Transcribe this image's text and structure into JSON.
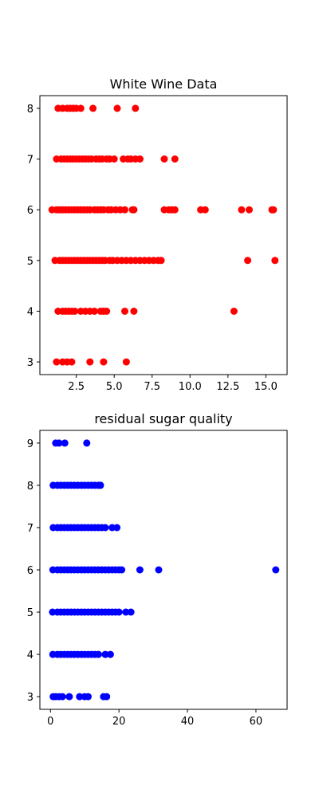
{
  "chart_data": [
    {
      "type": "scatter",
      "title": "White Wine Data",
      "xlabel": "",
      "ylabel": "",
      "xlim": [
        0.1,
        16.4
      ],
      "ylim": [
        2.75,
        8.25
      ],
      "xticks": [
        2.5,
        5.0,
        7.5,
        10.0,
        12.5,
        15.0
      ],
      "xtick_labels": [
        "2.5",
        "5.0",
        "7.5",
        "10.0",
        "12.5",
        "15.0"
      ],
      "yticks": [
        3,
        4,
        5,
        6,
        7,
        8
      ],
      "ytick_labels": [
        "3",
        "4",
        "5",
        "6",
        "7",
        "8"
      ],
      "color": "#ff0000",
      "series": [
        {
          "name": "points",
          "points": [
            [
              1.3,
              8
            ],
            [
              1.6,
              8
            ],
            [
              1.9,
              8
            ],
            [
              2.1,
              8
            ],
            [
              2.3,
              8
            ],
            [
              2.5,
              8
            ],
            [
              2.8,
              8
            ],
            [
              3.6,
              8
            ],
            [
              5.2,
              8
            ],
            [
              6.4,
              8
            ],
            [
              1.2,
              7
            ],
            [
              1.5,
              7
            ],
            [
              1.7,
              7
            ],
            [
              1.9,
              7
            ],
            [
              2.1,
              7
            ],
            [
              2.3,
              7
            ],
            [
              2.5,
              7
            ],
            [
              2.7,
              7
            ],
            [
              2.9,
              7
            ],
            [
              3.1,
              7
            ],
            [
              3.3,
              7
            ],
            [
              3.5,
              7
            ],
            [
              3.8,
              7
            ],
            [
              4.0,
              7
            ],
            [
              4.2,
              7
            ],
            [
              4.5,
              7
            ],
            [
              4.7,
              7
            ],
            [
              5.0,
              7
            ],
            [
              5.6,
              7
            ],
            [
              5.9,
              7
            ],
            [
              6.1,
              7
            ],
            [
              6.4,
              7
            ],
            [
              6.7,
              7
            ],
            [
              8.3,
              7
            ],
            [
              9.0,
              7
            ],
            [
              0.9,
              6
            ],
            [
              1.2,
              6
            ],
            [
              1.4,
              6
            ],
            [
              1.6,
              6
            ],
            [
              1.8,
              6
            ],
            [
              2.0,
              6
            ],
            [
              2.2,
              6
            ],
            [
              2.4,
              6
            ],
            [
              2.6,
              6
            ],
            [
              2.8,
              6
            ],
            [
              3.0,
              6
            ],
            [
              3.2,
              6
            ],
            [
              3.4,
              6
            ],
            [
              3.7,
              6
            ],
            [
              3.9,
              6
            ],
            [
              4.1,
              6
            ],
            [
              4.3,
              6
            ],
            [
              4.6,
              6
            ],
            [
              4.8,
              6
            ],
            [
              5.1,
              6
            ],
            [
              5.4,
              6
            ],
            [
              5.7,
              6
            ],
            [
              6.2,
              6
            ],
            [
              6.3,
              6
            ],
            [
              8.3,
              6
            ],
            [
              8.6,
              6
            ],
            [
              8.8,
              6
            ],
            [
              9.0,
              6
            ],
            [
              10.7,
              6
            ],
            [
              11.0,
              6
            ],
            [
              13.4,
              6
            ],
            [
              13.9,
              6
            ],
            [
              15.4,
              6
            ],
            [
              15.5,
              6
            ],
            [
              1.1,
              5
            ],
            [
              1.4,
              5
            ],
            [
              1.6,
              5
            ],
            [
              1.8,
              5
            ],
            [
              2.0,
              5
            ],
            [
              2.2,
              5
            ],
            [
              2.4,
              5
            ],
            [
              2.6,
              5
            ],
            [
              2.8,
              5
            ],
            [
              3.0,
              5
            ],
            [
              3.2,
              5
            ],
            [
              3.4,
              5
            ],
            [
              3.6,
              5
            ],
            [
              3.8,
              5
            ],
            [
              4.0,
              5
            ],
            [
              4.2,
              5
            ],
            [
              4.4,
              5
            ],
            [
              4.7,
              5
            ],
            [
              4.9,
              5
            ],
            [
              5.2,
              5
            ],
            [
              5.5,
              5
            ],
            [
              5.8,
              5
            ],
            [
              6.1,
              5
            ],
            [
              6.4,
              5
            ],
            [
              6.7,
              5
            ],
            [
              7.0,
              5
            ],
            [
              7.3,
              5
            ],
            [
              7.6,
              5
            ],
            [
              7.9,
              5
            ],
            [
              8.1,
              5
            ],
            [
              13.8,
              5
            ],
            [
              15.6,
              5
            ],
            [
              1.3,
              4
            ],
            [
              1.6,
              4
            ],
            [
              1.8,
              4
            ],
            [
              2.0,
              4
            ],
            [
              2.2,
              4
            ],
            [
              2.4,
              4
            ],
            [
              2.8,
              4
            ],
            [
              3.1,
              4
            ],
            [
              3.4,
              4
            ],
            [
              3.7,
              4
            ],
            [
              4.1,
              4
            ],
            [
              4.3,
              4
            ],
            [
              4.5,
              4
            ],
            [
              5.7,
              4
            ],
            [
              6.3,
              4
            ],
            [
              12.9,
              4
            ],
            [
              1.2,
              3
            ],
            [
              1.6,
              3
            ],
            [
              1.9,
              3
            ],
            [
              2.2,
              3
            ],
            [
              3.4,
              3
            ],
            [
              4.3,
              3
            ],
            [
              5.8,
              3
            ]
          ]
        }
      ]
    },
    {
      "type": "scatter",
      "title": "residual sugar quality",
      "xlabel": "",
      "ylabel": "",
      "xlim": [
        -3.1,
        69.1
      ],
      "ylim": [
        2.7,
        9.3
      ],
      "xticks": [
        0,
        20,
        40,
        60
      ],
      "xtick_labels": [
        "0",
        "20",
        "40",
        "60"
      ],
      "yticks": [
        3,
        4,
        5,
        6,
        7,
        8,
        9
      ],
      "ytick_labels": [
        "3",
        "4",
        "5",
        "6",
        "7",
        "8",
        "9"
      ],
      "color": "#0000ff",
      "series": [
        {
          "name": "points",
          "points": [
            [
              1.5,
              9
            ],
            [
              2.5,
              9
            ],
            [
              4.2,
              9
            ],
            [
              10.6,
              9
            ],
            [
              0.8,
              8
            ],
            [
              2,
              8
            ],
            [
              3,
              8
            ],
            [
              4,
              8
            ],
            [
              5,
              8
            ],
            [
              6,
              8
            ],
            [
              7,
              8
            ],
            [
              8,
              8
            ],
            [
              9,
              8
            ],
            [
              10,
              8
            ],
            [
              11,
              8
            ],
            [
              12,
              8
            ],
            [
              13,
              8
            ],
            [
              14,
              8
            ],
            [
              14.6,
              8
            ],
            [
              0.8,
              7
            ],
            [
              2,
              7
            ],
            [
              3,
              7
            ],
            [
              4,
              7
            ],
            [
              5,
              7
            ],
            [
              6,
              7
            ],
            [
              7,
              7
            ],
            [
              8,
              7
            ],
            [
              9,
              7
            ],
            [
              10,
              7
            ],
            [
              11,
              7
            ],
            [
              12,
              7
            ],
            [
              13,
              7
            ],
            [
              14,
              7
            ],
            [
              15,
              7
            ],
            [
              16,
              7
            ],
            [
              18,
              7
            ],
            [
              19.4,
              7
            ],
            [
              0.7,
              6
            ],
            [
              2,
              6
            ],
            [
              3,
              6
            ],
            [
              4,
              6
            ],
            [
              5,
              6
            ],
            [
              6,
              6
            ],
            [
              7,
              6
            ],
            [
              8,
              6
            ],
            [
              9,
              6
            ],
            [
              10,
              6
            ],
            [
              11,
              6
            ],
            [
              12,
              6
            ],
            [
              13,
              6
            ],
            [
              14,
              6
            ],
            [
              15,
              6
            ],
            [
              16,
              6
            ],
            [
              17,
              6
            ],
            [
              18,
              6
            ],
            [
              19,
              6
            ],
            [
              20,
              6
            ],
            [
              20.8,
              6
            ],
            [
              26.1,
              6
            ],
            [
              31.6,
              6
            ],
            [
              65.8,
              6
            ],
            [
              0.6,
              5
            ],
            [
              2,
              5
            ],
            [
              3,
              5
            ],
            [
              4,
              5
            ],
            [
              5,
              5
            ],
            [
              6,
              5
            ],
            [
              7,
              5
            ],
            [
              8,
              5
            ],
            [
              9,
              5
            ],
            [
              10,
              5
            ],
            [
              11,
              5
            ],
            [
              12,
              5
            ],
            [
              13,
              5
            ],
            [
              14,
              5
            ],
            [
              15,
              5
            ],
            [
              16,
              5
            ],
            [
              17,
              5
            ],
            [
              18,
              5
            ],
            [
              19,
              5
            ],
            [
              20,
              5
            ],
            [
              22,
              5
            ],
            [
              23.5,
              5
            ],
            [
              0.7,
              4
            ],
            [
              2,
              4
            ],
            [
              3,
              4
            ],
            [
              4,
              4
            ],
            [
              5,
              4
            ],
            [
              6,
              4
            ],
            [
              7,
              4
            ],
            [
              8,
              4
            ],
            [
              9,
              4
            ],
            [
              10,
              4
            ],
            [
              11,
              4
            ],
            [
              12,
              4
            ],
            [
              13,
              4
            ],
            [
              14,
              4
            ],
            [
              16,
              4
            ],
            [
              17.5,
              4
            ],
            [
              0.8,
              3
            ],
            [
              1.5,
              3
            ],
            [
              2.5,
              3
            ],
            [
              3.5,
              3
            ],
            [
              5.5,
              3
            ],
            [
              8.5,
              3
            ],
            [
              10,
              3
            ],
            [
              11,
              3
            ],
            [
              15.5,
              3
            ],
            [
              16.4,
              3
            ]
          ]
        }
      ]
    }
  ]
}
